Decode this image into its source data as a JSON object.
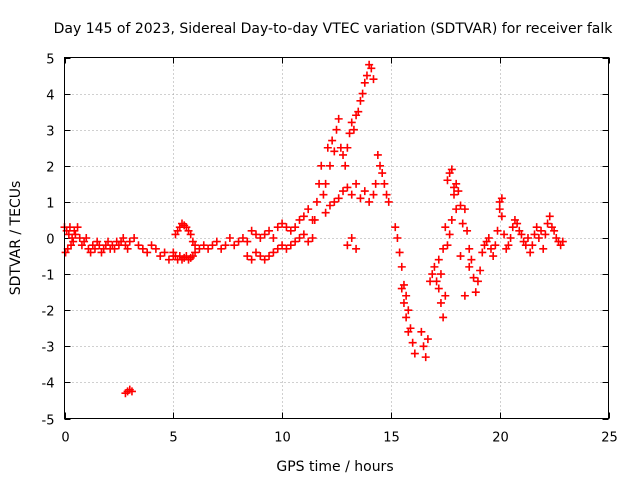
{
  "chart_data": {
    "type": "scatter",
    "title": "Day 145 of 2023, Sidereal Day-to-day VTEC variation (SDTVAR) for receiver falk",
    "xlabel": "GPS time / hours",
    "ylabel": "SDTVAR / TECUs",
    "xlim": [
      0,
      25
    ],
    "ylim": [
      -5,
      5
    ],
    "xticks": [
      0,
      5,
      10,
      15,
      20,
      25
    ],
    "yticks": [
      -5,
      -4,
      -3,
      -2,
      -1,
      0,
      1,
      2,
      3,
      4,
      5
    ],
    "grid": true,
    "marker": "+",
    "color": "#ff0000",
    "series": [
      {
        "name": "SDTVAR",
        "x": [
          0.0,
          0.05,
          0.1,
          0.15,
          0.2,
          0.25,
          0.3,
          0.35,
          0.4,
          0.45,
          0.5,
          0.6,
          0.7,
          0.8,
          0.9,
          1.0,
          1.1,
          1.2,
          1.3,
          1.4,
          1.5,
          1.6,
          1.7,
          1.8,
          1.9,
          2.0,
          2.1,
          2.2,
          2.3,
          2.4,
          2.5,
          2.6,
          2.7,
          2.8,
          2.9,
          3.0,
          3.2,
          3.4,
          3.6,
          3.8,
          4.0,
          4.2,
          4.4,
          2.8,
          2.9,
          3.0,
          3.1,
          4.6,
          4.8,
          5.0,
          5.1,
          5.2,
          5.3,
          5.4,
          5.5,
          5.6,
          5.7,
          5.8,
          5.9,
          6.0,
          5.0,
          5.1,
          5.2,
          5.3,
          5.4,
          5.5,
          5.6,
          5.7,
          5.8,
          5.9,
          6.0,
          6.2,
          6.4,
          6.6,
          6.8,
          7.0,
          7.2,
          7.4,
          7.6,
          7.8,
          8.0,
          8.2,
          8.4,
          8.6,
          8.8,
          9.0,
          9.2,
          9.4,
          9.6,
          9.8,
          10.0,
          10.2,
          10.4,
          10.6,
          10.8,
          11.0,
          11.2,
          11.4,
          8.4,
          8.6,
          8.8,
          9.0,
          9.2,
          9.4,
          9.6,
          9.8,
          10.0,
          10.2,
          10.4,
          10.6,
          10.8,
          11.0,
          11.2,
          11.4,
          11.5,
          11.6,
          11.7,
          11.8,
          11.9,
          12.0,
          12.1,
          12.2,
          12.3,
          12.4,
          12.5,
          12.6,
          12.7,
          12.8,
          12.9,
          13.0,
          13.1,
          13.2,
          13.3,
          13.4,
          13.5,
          13.6,
          13.7,
          13.8,
          13.9,
          14.0,
          14.1,
          14.2,
          12.0,
          12.2,
          12.4,
          12.6,
          12.8,
          13.0,
          13.2,
          13.4,
          13.6,
          13.8,
          14.0,
          14.2,
          14.3,
          14.4,
          14.5,
          14.6,
          14.7,
          14.8,
          14.9,
          13.0,
          13.2,
          13.4,
          15.2,
          15.3,
          15.4,
          15.5,
          15.6,
          15.7,
          15.8,
          15.9,
          16.0,
          16.1,
          15.5,
          15.6,
          15.7,
          15.8,
          16.4,
          16.5,
          16.6,
          16.7,
          16.8,
          16.9,
          17.0,
          17.1,
          17.2,
          17.3,
          17.4,
          17.5,
          17.6,
          17.7,
          17.8,
          17.9,
          18.0,
          18.1,
          18.2,
          18.3,
          18.4,
          18.5,
          18.6,
          18.7,
          18.8,
          18.9,
          19.0,
          19.1,
          19.2,
          19.3,
          19.4,
          19.5,
          19.6,
          19.7,
          19.8,
          19.9,
          20.0,
          20.1,
          20.2,
          20.3,
          20.4,
          20.5,
          20.6,
          20.7,
          20.8,
          20.9,
          21.0,
          21.1,
          21.2,
          21.3,
          21.4,
          21.5,
          21.6,
          21.7,
          21.8,
          21.9,
          22.0,
          22.1,
          22.2,
          22.3,
          22.4,
          22.5,
          22.6,
          22.7,
          22.8,
          22.9,
          17.2,
          17.3,
          17.4,
          17.5,
          17.6,
          17.7,
          17.8,
          17.9,
          18.0,
          18.2,
          18.4,
          18.6,
          20.0,
          20.1
        ],
        "y": [
          0.3,
          -0.4,
          0.2,
          -0.3,
          0.1,
          0.3,
          -0.2,
          0.0,
          -0.1,
          0.2,
          0.1,
          0.3,
          0.0,
          -0.2,
          -0.1,
          0.0,
          -0.3,
          -0.4,
          -0.2,
          -0.3,
          -0.1,
          -0.2,
          -0.4,
          -0.3,
          -0.2,
          -0.1,
          -0.3,
          -0.2,
          -0.3,
          -0.1,
          -0.2,
          -0.1,
          0.0,
          -0.2,
          -0.3,
          -0.1,
          0.0,
          -0.2,
          -0.3,
          -0.4,
          -0.2,
          -0.3,
          -0.5,
          -4.3,
          -4.25,
          -4.2,
          -4.25,
          -0.4,
          -0.6,
          -0.5,
          0.1,
          0.2,
          0.3,
          0.4,
          0.35,
          0.3,
          0.2,
          0.1,
          -0.1,
          -0.2,
          -0.4,
          -0.5,
          -0.6,
          -0.5,
          -0.6,
          -0.55,
          -0.5,
          -0.6,
          -0.55,
          -0.5,
          -0.4,
          -0.3,
          -0.2,
          -0.3,
          -0.2,
          -0.1,
          -0.3,
          -0.2,
          0.0,
          -0.2,
          -0.1,
          0.0,
          -0.1,
          0.2,
          0.1,
          0.0,
          0.1,
          0.2,
          0.0,
          0.3,
          0.4,
          0.3,
          0.2,
          0.3,
          0.5,
          0.6,
          0.8,
          0.5,
          -0.5,
          -0.6,
          -0.4,
          -0.5,
          -0.6,
          -0.5,
          -0.4,
          -0.3,
          -0.2,
          -0.3,
          -0.2,
          -0.1,
          0.0,
          0.1,
          -0.1,
          0.0,
          0.5,
          1.0,
          1.5,
          2.0,
          1.2,
          1.5,
          2.5,
          2.0,
          2.7,
          2.4,
          3.0,
          3.3,
          2.5,
          2.3,
          2.0,
          2.5,
          2.9,
          3.2,
          3.0,
          3.4,
          3.5,
          3.8,
          4.0,
          4.3,
          4.5,
          4.8,
          4.7,
          4.4,
          0.7,
          0.9,
          1.0,
          1.1,
          1.3,
          1.4,
          1.2,
          1.5,
          1.1,
          1.3,
          1.0,
          1.2,
          1.5,
          2.3,
          2.0,
          1.8,
          1.5,
          1.2,
          1.0,
          -0.2,
          0.0,
          -0.3,
          0.3,
          0.0,
          -0.4,
          -0.8,
          -1.3,
          -1.6,
          -2.0,
          -2.5,
          -2.9,
          -3.2,
          -1.4,
          -1.8,
          -2.2,
          -2.6,
          -2.6,
          -3.0,
          -3.3,
          -2.8,
          -1.2,
          -1.0,
          -0.8,
          -1.2,
          -0.6,
          -1.0,
          -0.3,
          0.3,
          -0.2,
          0.1,
          0.5,
          1.2,
          1.5,
          1.3,
          0.9,
          0.4,
          0.8,
          0.2,
          -0.3,
          -0.6,
          -1.1,
          -1.5,
          -1.2,
          -0.9,
          -0.4,
          -0.2,
          -0.1,
          0.0,
          -0.3,
          -0.5,
          -0.2,
          0.2,
          1.0,
          0.6,
          0.1,
          -0.3,
          -0.2,
          0.0,
          0.3,
          0.5,
          0.4,
          0.2,
          0.1,
          -0.1,
          -0.2,
          0.0,
          -0.4,
          -0.2,
          0.1,
          0.3,
          0.0,
          0.2,
          -0.3,
          0.1,
          0.4,
          0.6,
          0.3,
          0.2,
          0.0,
          -0.1,
          -0.2,
          -0.1,
          -1.4,
          -1.8,
          -2.2,
          -1.6,
          1.6,
          1.8,
          1.9,
          1.4,
          0.8,
          -0.5,
          -1.6,
          -0.8,
          0.8,
          1.1
        ]
      }
    ]
  }
}
